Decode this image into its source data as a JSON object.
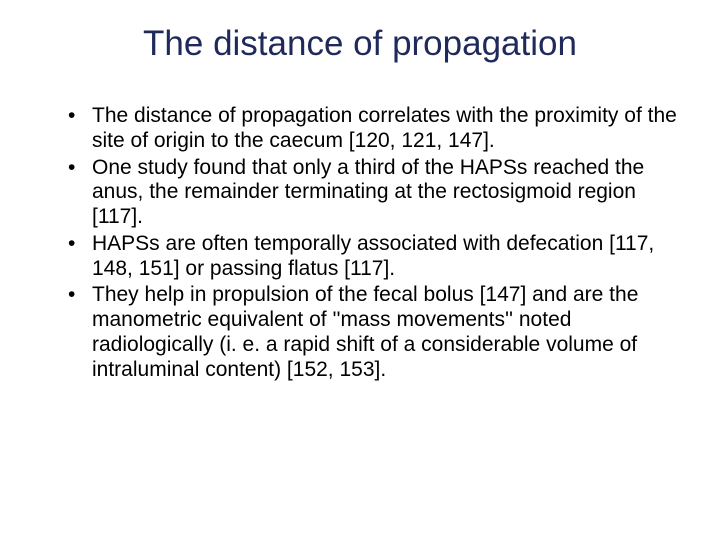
{
  "slide": {
    "title": "The distance of propagation",
    "title_color": "#1f2a5a",
    "title_fontsize": 35,
    "body_fontsize": 21,
    "body_color": "#000000",
    "background": "#ffffff",
    "bullets": [
      "The distance of propagation correlates with the proximity of the site of origin to the caecum [120, 121, 147].",
      "One study found that only a third of the HAPSs reached the anus, the remainder terminating at the rectosigmoid region [117].",
      "HAPSs are often temporally associated with defecation [117, 148, 151] or passing flatus [117].",
      "They help in propulsion of the fecal bolus [147] and are the manometric equivalent of ''mass movements'' noted radiologically (i. e. a rapid shift of a considerable volume of intraluminal content) [152, 153]."
    ]
  }
}
